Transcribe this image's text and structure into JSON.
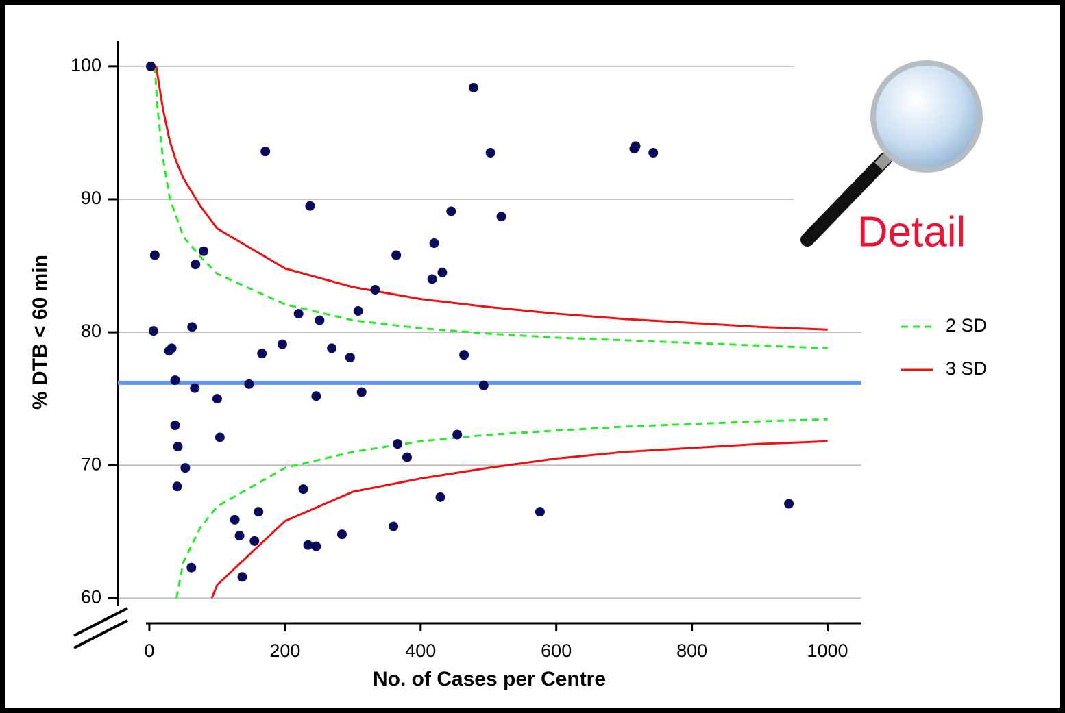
{
  "chart_data": {
    "type": "funnel-scatter",
    "xlabel": "No. of Cases per Centre",
    "ylabel": "% DTB < 60 min",
    "annotation": "Detail",
    "xlim": [
      -5,
      1050
    ],
    "xticks": [
      0,
      200,
      400,
      600,
      800,
      1000
    ],
    "ylim": [
      59.4,
      101.9
    ],
    "yticks": [
      60,
      70,
      80,
      90,
      100
    ],
    "grid": true,
    "legend": "right",
    "reference_line": 76.2,
    "reference_color": "#6495ed",
    "point_color": "#0b0b5c",
    "x": [
      2,
      8,
      6,
      29,
      33,
      63,
      38,
      67,
      80,
      68,
      38,
      42,
      53,
      41,
      62,
      100,
      104,
      126,
      133,
      137,
      155,
      161,
      147,
      166,
      171,
      196,
      220,
      227,
      234,
      246,
      246,
      237,
      251,
      269,
      284,
      296,
      308,
      313,
      333,
      360,
      364,
      366,
      380,
      417,
      420,
      432,
      429,
      445,
      454,
      464,
      478,
      493,
      503,
      519,
      576,
      715,
      717,
      743,
      943
    ],
    "values": [
      100,
      85.8,
      80.1,
      78.6,
      78.8,
      80.4,
      76.4,
      75.8,
      86.1,
      85.1,
      73.0,
      71.4,
      69.8,
      68.4,
      62.3,
      75.0,
      72.1,
      65.9,
      64.7,
      61.6,
      64.3,
      66.5,
      76.1,
      78.4,
      93.6,
      79.1,
      81.4,
      68.2,
      64.0,
      63.9,
      75.2,
      89.5,
      80.9,
      78.8,
      64.8,
      78.1,
      81.6,
      75.5,
      83.2,
      65.4,
      85.8,
      71.6,
      70.6,
      84.0,
      86.7,
      84.5,
      67.6,
      89.1,
      72.3,
      78.3,
      98.4,
      76.0,
      93.5,
      88.7,
      66.5,
      93.8,
      94.0,
      93.5,
      67.1
    ],
    "series": [
      {
        "name": "2 SD",
        "color": "#22ee22",
        "dashed": true,
        "x": [
          8,
          12,
          20,
          30,
          50,
          75,
          100,
          200,
          300,
          400,
          500,
          600,
          700,
          800,
          900,
          1000
        ],
        "values": [
          100,
          96.8,
          93.1,
          90.1,
          87.2,
          85.7,
          84.4,
          82.1,
          80.9,
          80.3,
          79.9,
          79.6,
          79.4,
          79.2,
          79.0,
          78.8
        ],
        "lower_x": [
          40,
          50,
          75,
          100,
          200,
          300,
          400,
          500,
          600,
          700,
          800,
          900,
          1000
        ],
        "lower_values": [
          60,
          62.7,
          65.3,
          66.9,
          69.8,
          71.0,
          71.8,
          72.3,
          72.6,
          72.9,
          73.1,
          73.3,
          73.45
        ]
      },
      {
        "name": "3 SD",
        "color": "#ee1111",
        "dashed": false,
        "x": [
          10,
          20,
          30,
          40,
          50,
          75,
          100,
          200,
          300,
          400,
          500,
          600,
          700,
          800,
          900,
          1000
        ],
        "values": [
          100,
          96.8,
          94.4,
          92.8,
          91.6,
          89.5,
          87.8,
          84.8,
          83.4,
          82.5,
          81.9,
          81.4,
          81.0,
          80.7,
          80.4,
          80.2
        ],
        "lower_x": [
          92,
          100,
          200,
          300,
          400,
          500,
          600,
          700,
          800,
          900,
          1000
        ],
        "lower_values": [
          60,
          61.0,
          65.8,
          68.0,
          69.0,
          69.8,
          70.5,
          71.0,
          71.3,
          71.6,
          71.8
        ]
      }
    ]
  }
}
